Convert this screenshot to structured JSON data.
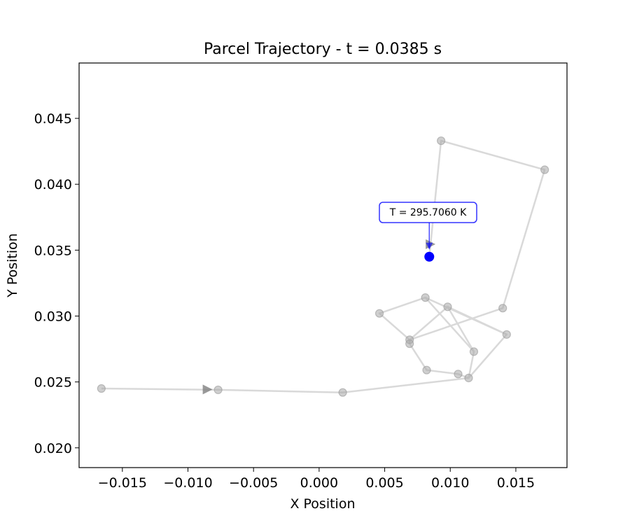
{
  "chart_data": {
    "type": "line",
    "title": "Parcel Trajectory - t = 0.0385 s",
    "xlabel": "X Position",
    "ylabel": "Y Position",
    "xlim": [
      -0.0183,
      0.0189
    ],
    "ylim": [
      0.0185,
      0.0492
    ],
    "xticks": [
      -0.015,
      -0.01,
      -0.005,
      0.0,
      0.005,
      0.01,
      0.015
    ],
    "xtick_labels": [
      "−0.015",
      "−0.010",
      "−0.005",
      "0.000",
      "0.005",
      "0.010",
      "0.015"
    ],
    "yticks": [
      0.02,
      0.025,
      0.03,
      0.035,
      0.04,
      0.045
    ],
    "ytick_labels": [
      "0.020",
      "0.025",
      "0.030",
      "0.035",
      "0.040",
      "0.045"
    ],
    "grid": false,
    "series": [
      {
        "points": [
          {
            "x": -0.0166,
            "y": 0.0245
          },
          {
            "x": -0.0077,
            "y": 0.0244
          },
          {
            "x": 0.0018,
            "y": 0.0242
          },
          {
            "x": 0.0114,
            "y": 0.0253
          },
          {
            "x": 0.0143,
            "y": 0.0286
          },
          {
            "x": 0.0081,
            "y": 0.0314
          },
          {
            "x": 0.0046,
            "y": 0.0302
          },
          {
            "x": 0.0069,
            "y": 0.0282
          },
          {
            "x": 0.014,
            "y": 0.0306
          },
          {
            "x": 0.0172,
            "y": 0.0411
          },
          {
            "x": 0.0093,
            "y": 0.0433
          },
          {
            "x": 0.0084,
            "y": 0.0345
          }
        ],
        "extra_points": [
          {
            "x": 0.0098,
            "y": 0.0307
          },
          {
            "x": 0.0069,
            "y": 0.0279
          },
          {
            "x": 0.0082,
            "y": 0.0259
          },
          {
            "x": 0.0106,
            "y": 0.0256
          },
          {
            "x": 0.0118,
            "y": 0.0273
          }
        ],
        "color": "#cccccc"
      }
    ],
    "current_point": {
      "x": 0.0084,
      "y": 0.0345,
      "color": "#0000ff"
    },
    "annotation": {
      "text": "T = 295.7060 K",
      "color": "#0000ff"
    }
  }
}
